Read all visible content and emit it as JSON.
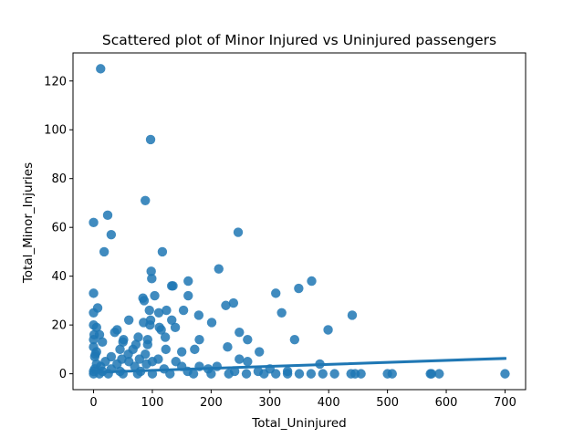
{
  "chart_data": {
    "type": "scatter",
    "title": "Scattered plot of Minor Injured vs Uninjured passengers",
    "xlabel": "Total_Uninjured",
    "ylabel": "Total_Minor_Injuries",
    "xlim": [
      -35,
      735
    ],
    "ylim": [
      -6.5,
      131.5
    ],
    "xticks": [
      0,
      100,
      200,
      300,
      400,
      500,
      600,
      700
    ],
    "yticks": [
      0,
      20,
      40,
      60,
      80,
      100,
      120
    ],
    "grid": false,
    "legend": "none",
    "colors": {
      "points": "#1f77b4",
      "regression": "#1f77b4",
      "ci_band": "#1f77b4",
      "frame": "#000000"
    },
    "points": [
      {
        "x": 12,
        "y": 125
      },
      {
        "x": 97,
        "y": 96
      },
      {
        "x": 88,
        "y": 71
      },
      {
        "x": 24,
        "y": 65
      },
      {
        "x": 0,
        "y": 62
      },
      {
        "x": 246,
        "y": 58
      },
      {
        "x": 30,
        "y": 57
      },
      {
        "x": 18,
        "y": 50
      },
      {
        "x": 117,
        "y": 50
      },
      {
        "x": 213,
        "y": 43
      },
      {
        "x": 98,
        "y": 42
      },
      {
        "x": 99,
        "y": 39
      },
      {
        "x": 161,
        "y": 38
      },
      {
        "x": 371,
        "y": 38
      },
      {
        "x": 133,
        "y": 36
      },
      {
        "x": 135,
        "y": 36
      },
      {
        "x": 349,
        "y": 35
      },
      {
        "x": 0,
        "y": 33
      },
      {
        "x": 310,
        "y": 33
      },
      {
        "x": 104,
        "y": 32
      },
      {
        "x": 161,
        "y": 32
      },
      {
        "x": 84,
        "y": 31
      },
      {
        "x": 86,
        "y": 30
      },
      {
        "x": 238,
        "y": 29
      },
      {
        "x": 225,
        "y": 28
      },
      {
        "x": 7,
        "y": 27
      },
      {
        "x": 95,
        "y": 26
      },
      {
        "x": 124,
        "y": 26
      },
      {
        "x": 153,
        "y": 26
      },
      {
        "x": 0,
        "y": 25
      },
      {
        "x": 111,
        "y": 25
      },
      {
        "x": 320,
        "y": 25
      },
      {
        "x": 179,
        "y": 24
      },
      {
        "x": 440,
        "y": 24
      },
      {
        "x": 97,
        "y": 22
      },
      {
        "x": 60,
        "y": 22
      },
      {
        "x": 133,
        "y": 22
      },
      {
        "x": 85,
        "y": 21
      },
      {
        "x": 201,
        "y": 21
      },
      {
        "x": 0,
        "y": 20
      },
      {
        "x": 96,
        "y": 20
      },
      {
        "x": 112,
        "y": 19
      },
      {
        "x": 139,
        "y": 19
      },
      {
        "x": 5,
        "y": 19
      },
      {
        "x": 115,
        "y": 18
      },
      {
        "x": 40,
        "y": 18
      },
      {
        "x": 399,
        "y": 18
      },
      {
        "x": 36,
        "y": 17
      },
      {
        "x": 248,
        "y": 17
      },
      {
        "x": 10,
        "y": 16
      },
      {
        "x": 1,
        "y": 16
      },
      {
        "x": 76,
        "y": 15
      },
      {
        "x": 122,
        "y": 15
      },
      {
        "x": 0,
        "y": 14
      },
      {
        "x": 51,
        "y": 14
      },
      {
        "x": 92,
        "y": 14
      },
      {
        "x": 342,
        "y": 14
      },
      {
        "x": 262,
        "y": 14
      },
      {
        "x": 180,
        "y": 14
      },
      {
        "x": 15,
        "y": 13
      },
      {
        "x": 50,
        "y": 13
      },
      {
        "x": 72,
        "y": 12
      },
      {
        "x": 92,
        "y": 12
      },
      {
        "x": 0,
        "y": 11
      },
      {
        "x": 228,
        "y": 11
      },
      {
        "x": 45,
        "y": 10
      },
      {
        "x": 123,
        "y": 10
      },
      {
        "x": 172,
        "y": 10
      },
      {
        "x": 67,
        "y": 10
      },
      {
        "x": 5,
        "y": 9
      },
      {
        "x": 282,
        "y": 9
      },
      {
        "x": 150,
        "y": 9
      },
      {
        "x": 3,
        "y": 8
      },
      {
        "x": 59,
        "y": 8
      },
      {
        "x": 88,
        "y": 8
      },
      {
        "x": 30,
        "y": 7
      },
      {
        "x": 2,
        "y": 7
      },
      {
        "x": 48,
        "y": 6
      },
      {
        "x": 78,
        "y": 6
      },
      {
        "x": 110,
        "y": 6
      },
      {
        "x": 248,
        "y": 6
      },
      {
        "x": 20,
        "y": 5
      },
      {
        "x": 60,
        "y": 5
      },
      {
        "x": 100,
        "y": 5
      },
      {
        "x": 140,
        "y": 5
      },
      {
        "x": 262,
        "y": 5
      },
      {
        "x": 5,
        "y": 4
      },
      {
        "x": 40,
        "y": 4
      },
      {
        "x": 90,
        "y": 4
      },
      {
        "x": 385,
        "y": 4
      },
      {
        "x": 150,
        "y": 3
      },
      {
        "x": 180,
        "y": 3
      },
      {
        "x": 210,
        "y": 3
      },
      {
        "x": 12,
        "y": 3
      },
      {
        "x": 70,
        "y": 3
      },
      {
        "x": 2,
        "y": 2
      },
      {
        "x": 30,
        "y": 2
      },
      {
        "x": 120,
        "y": 2
      },
      {
        "x": 195,
        "y": 2
      },
      {
        "x": 300,
        "y": 2
      },
      {
        "x": 0,
        "y": 1
      },
      {
        "x": 15,
        "y": 1
      },
      {
        "x": 45,
        "y": 1
      },
      {
        "x": 80,
        "y": 1
      },
      {
        "x": 160,
        "y": 1
      },
      {
        "x": 240,
        "y": 1
      },
      {
        "x": 280,
        "y": 1
      },
      {
        "x": 330,
        "y": 1
      },
      {
        "x": 0,
        "y": 0
      },
      {
        "x": 10,
        "y": 0
      },
      {
        "x": 25,
        "y": 0
      },
      {
        "x": 50,
        "y": 0
      },
      {
        "x": 75,
        "y": 0
      },
      {
        "x": 100,
        "y": 0
      },
      {
        "x": 130,
        "y": 0
      },
      {
        "x": 170,
        "y": 0
      },
      {
        "x": 200,
        "y": 0
      },
      {
        "x": 230,
        "y": 0
      },
      {
        "x": 260,
        "y": 0
      },
      {
        "x": 290,
        "y": 0
      },
      {
        "x": 310,
        "y": 0
      },
      {
        "x": 330,
        "y": 0
      },
      {
        "x": 350,
        "y": 0
      },
      {
        "x": 370,
        "y": 0
      },
      {
        "x": 390,
        "y": 0
      },
      {
        "x": 410,
        "y": 0
      },
      {
        "x": 438,
        "y": 0
      },
      {
        "x": 445,
        "y": 0
      },
      {
        "x": 455,
        "y": 0
      },
      {
        "x": 500,
        "y": 0
      },
      {
        "x": 508,
        "y": 0
      },
      {
        "x": 573,
        "y": 0
      },
      {
        "x": 575,
        "y": 0
      },
      {
        "x": 588,
        "y": 0
      },
      {
        "x": 700,
        "y": 0
      }
    ],
    "regression_line": {
      "x": [
        0,
        700
      ],
      "y": [
        0.6,
        6.3
      ]
    },
    "confidence_band": {
      "x": [
        0,
        700
      ],
      "lower": [
        0.4,
        5.5
      ],
      "upper": [
        0.8,
        7.1
      ]
    }
  }
}
